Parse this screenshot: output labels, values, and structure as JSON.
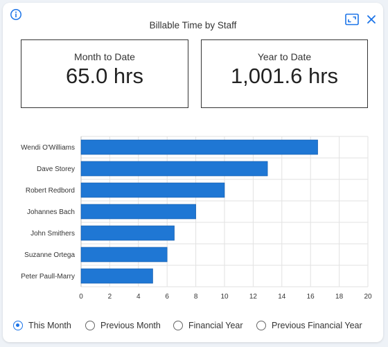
{
  "header": {
    "title": "Billable Time by Staff"
  },
  "kpis": {
    "month_to_date": {
      "label": "Month to Date",
      "value": "65.0 hrs"
    },
    "year_to_date": {
      "label": "Year to Date",
      "value": "1,001.6 hrs"
    }
  },
  "icons": {
    "info": "info-icon",
    "expand": "expand-icon",
    "close": "close-icon"
  },
  "colors": {
    "accent": "#1a73e8",
    "bar": "#1f77d4"
  },
  "chart_data": {
    "type": "bar",
    "orientation": "horizontal",
    "categories": [
      "Wendi O'Williams",
      "Dave Storey",
      "Robert Redbord",
      "Johannes Bach",
      "John Smithers",
      "Suzanne Ortega",
      "Peter Paull-Marry"
    ],
    "values": [
      16.5,
      13,
      10,
      8,
      6.5,
      6,
      5
    ],
    "xlim": [
      0,
      20
    ],
    "xticks": [
      0,
      2,
      4,
      6,
      8,
      10,
      12,
      14,
      16,
      18,
      20
    ],
    "grid": true,
    "title": "",
    "xlabel": "",
    "ylabel": ""
  },
  "period_options": {
    "selected": "This Month",
    "items": [
      {
        "label": "This Month",
        "checked": true
      },
      {
        "label": "Previous Month",
        "checked": false
      },
      {
        "label": "Financial Year",
        "checked": false
      },
      {
        "label": "Previous Financial Year",
        "checked": false
      }
    ]
  }
}
